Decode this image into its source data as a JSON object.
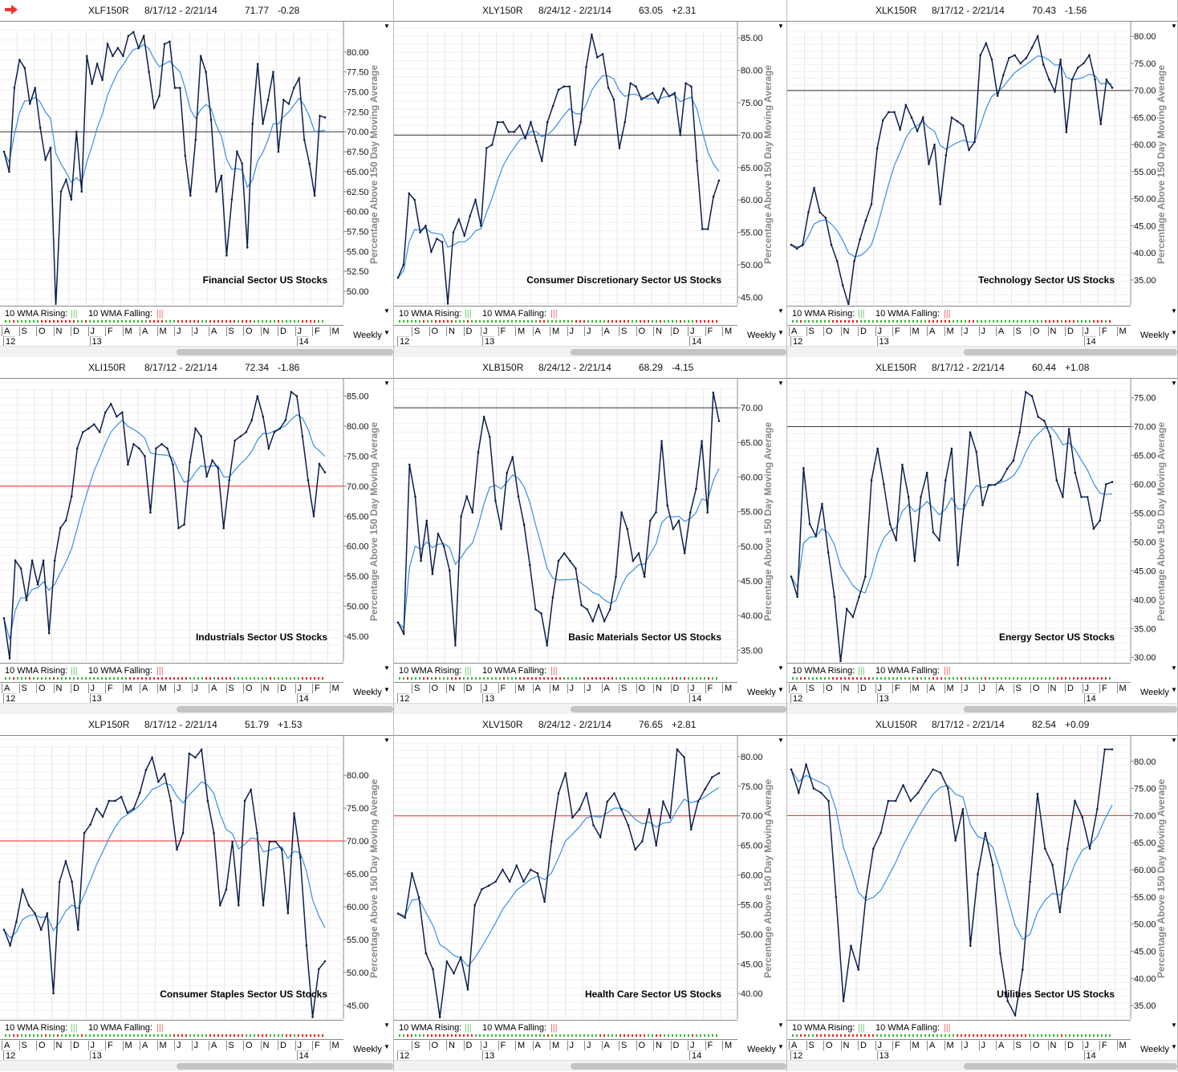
{
  "common": {
    "ylabel": "Percentage Above 150 Day Moving Average",
    "rising_label": "10 WMA Rising:",
    "falling_label": "10 WMA Falling:",
    "period": "Weekly",
    "rising_color": "#33bb33",
    "falling_color": "#ee2222",
    "price_color": "#0d1e4a",
    "wma_color": "#3a8ee6"
  },
  "chart_data": [
    {
      "type": "line",
      "ticker": "XLF150R",
      "date_range": "8/17/12 - 2/21/14",
      "last": "71.77",
      "change": "-0.28",
      "title": "Financial Sector US Stocks",
      "yticks": [
        50,
        52.5,
        55,
        57.5,
        60,
        62.5,
        65,
        67.5,
        70,
        72.5,
        75,
        77.5,
        80
      ],
      "ylim": [
        48.3,
        83.8
      ],
      "reference_line": 70,
      "ref_color": "#333333",
      "months": [
        "A",
        "S",
        "O",
        "N",
        "D",
        "J",
        "F",
        "M",
        "A",
        "M",
        "J",
        "J",
        "A",
        "S",
        "O",
        "N",
        "D",
        "J",
        "F",
        "M"
      ],
      "years": [
        "12",
        "13",
        "14"
      ],
      "values": [
        67.5,
        65,
        75.5,
        79,
        78,
        73.5,
        75.5,
        70.5,
        66.5,
        68,
        48,
        62.5,
        64,
        61.5,
        70,
        62.5,
        79.5,
        76,
        78.5,
        76.5,
        81,
        79.5,
        80.5,
        79.5,
        82,
        82.5,
        80.5,
        82,
        77.5,
        73,
        74.5,
        81,
        81.3,
        75.5,
        75.5,
        67,
        62,
        69,
        79.5,
        77.5,
        71.5,
        62.5,
        64.5,
        54.5,
        61.5,
        67.5,
        66,
        55.5,
        71,
        78.5,
        71,
        74,
        77.5,
        67.5,
        74,
        73.5,
        75.5,
        76.7,
        69,
        66,
        62,
        72,
        71.8
      ]
    },
    {
      "type": "line",
      "ticker": "XLY150R",
      "date_range": "8/24/12 - 2/21/14",
      "last": "63.05",
      "change": "+2.31",
      "title": "Consumer Discretionary Sector US Stocks",
      "yticks": [
        45,
        50,
        55,
        60,
        65,
        70,
        75,
        80,
        85
      ],
      "ylim": [
        43.8,
        87.5
      ],
      "reference_line": 70,
      "ref_color": "#333333",
      "months": [
        "S",
        "O",
        "N",
        "D",
        "J",
        "F",
        "M",
        "A",
        "M",
        "J",
        "J",
        "A",
        "S",
        "O",
        "N",
        "D",
        "J",
        "F",
        "M"
      ],
      "years": [
        "12",
        "13",
        "14"
      ],
      "values": [
        48,
        50,
        61,
        60,
        55,
        56,
        52,
        54,
        53.5,
        44,
        55,
        57,
        54.5,
        57.5,
        60,
        56,
        68,
        68.5,
        72,
        72,
        70.5,
        70.5,
        71.5,
        69.5,
        72,
        69,
        66,
        72,
        74.5,
        77,
        77.5,
        77.5,
        68.5,
        72,
        80.5,
        85.5,
        82,
        82.5,
        77.3,
        75.5,
        68,
        72,
        78,
        77.5,
        75.5,
        76,
        76.5,
        75,
        77.2,
        76,
        76.5,
        70,
        78,
        77.5,
        66,
        55.5,
        55.5,
        60.5,
        63
      ]
    },
    {
      "type": "line",
      "ticker": "XLK150R",
      "date_range": "8/17/12 - 2/21/14",
      "last": "70.43",
      "change": "-1.56",
      "title": "Technology Sector US Stocks",
      "yticks": [
        35,
        40,
        45,
        50,
        55,
        60,
        65,
        70,
        75,
        80
      ],
      "ylim": [
        30.4,
        82.7
      ],
      "reference_line": 70,
      "ref_color": "#333333",
      "months": [
        "A",
        "S",
        "O",
        "N",
        "D",
        "J",
        "F",
        "M",
        "A",
        "M",
        "J",
        "J",
        "A",
        "S",
        "O",
        "N",
        "D",
        "J",
        "F",
        "M"
      ],
      "years": [
        "12",
        "13",
        "14"
      ],
      "values": [
        41.5,
        40.8,
        41.5,
        47.5,
        52,
        47.5,
        46.5,
        41.5,
        38.5,
        34,
        30.4,
        38.5,
        42.5,
        46,
        49,
        59.3,
        64.5,
        66,
        66,
        62.8,
        67.3,
        65,
        62.5,
        65,
        56.4,
        60,
        49,
        58,
        65,
        64.3,
        63.5,
        59,
        60.5,
        76.5,
        78.7,
        75.7,
        69,
        72.8,
        76,
        76.5,
        75,
        76,
        77.9,
        80,
        74.8,
        72,
        69.8,
        75.7,
        62.3,
        72,
        74.2,
        75,
        76.5,
        72,
        63.8,
        72,
        70.5
      ]
    },
    {
      "type": "line",
      "ticker": "XLI150R",
      "date_range": "8/17/12 - 2/21/14",
      "last": "72.34",
      "change": "-1.86",
      "title": "Industrials Sector US Stocks",
      "yticks": [
        45,
        50,
        55,
        60,
        65,
        70,
        75,
        80,
        85
      ],
      "ylim": [
        40.7,
        87.9
      ],
      "reference_line": 70,
      "ref_color": "#ee2222",
      "months": [
        "A",
        "S",
        "O",
        "N",
        "D",
        "J",
        "F",
        "M",
        "A",
        "M",
        "J",
        "J",
        "A",
        "S",
        "O",
        "N",
        "D",
        "J",
        "F",
        "M"
      ],
      "years": [
        "12",
        "13",
        "14"
      ],
      "values": [
        48,
        41.3,
        57.6,
        56.3,
        51,
        57.6,
        53.6,
        57.6,
        45.5,
        57.6,
        63,
        64.3,
        68.3,
        76.3,
        79,
        79.6,
        80.3,
        79,
        82.3,
        83.7,
        81.6,
        82.3,
        73.6,
        77,
        76.3,
        75,
        65.6,
        76.3,
        77,
        76.3,
        73.6,
        63,
        63.6,
        74,
        79.6,
        78.3,
        71.6,
        74.3,
        73,
        63,
        71,
        77.6,
        78.3,
        79,
        81,
        85,
        81.6,
        76.3,
        79,
        79.6,
        81,
        85.7,
        85,
        78.3,
        71,
        65,
        73.7,
        72.3
      ]
    },
    {
      "type": "line",
      "ticker": "XLB150R",
      "date_range": "8/24/12 - 2/21/14",
      "last": "68.29",
      "change": "-4.15",
      "title": "Basic Materials Sector US Stocks",
      "yticks": [
        35,
        40,
        45,
        50,
        55,
        60,
        65,
        70
      ],
      "ylim": [
        33.3,
        74.2
      ],
      "reference_line": 70,
      "ref_color": "#333333",
      "months": [
        "S",
        "O",
        "N",
        "D",
        "J",
        "F",
        "M",
        "A",
        "M",
        "J",
        "J",
        "A",
        "S",
        "O",
        "N",
        "D",
        "J",
        "F",
        "M"
      ],
      "years": [
        "12",
        "13",
        "14"
      ],
      "values": [
        39,
        37.4,
        61.8,
        57.2,
        47.9,
        53.7,
        46,
        51.8,
        50,
        46.5,
        35.7,
        54.3,
        57.2,
        54.9,
        63.6,
        68.7,
        65.8,
        56.6,
        52.5,
        60.6,
        62.9,
        57.2,
        53.1,
        47.3,
        40.9,
        40.3,
        35.7,
        42.6,
        47.9,
        49,
        47.9,
        46.8,
        41.5,
        40.9,
        39.2,
        41.5,
        39.2,
        40.9,
        45.6,
        54.9,
        52.5,
        47.9,
        49,
        45.6,
        53.7,
        54.9,
        65.2,
        55.9,
        52.5,
        53.7,
        49,
        54.9,
        58.3,
        65.2,
        54.9,
        72.2,
        68.1
      ]
    },
    {
      "type": "line",
      "ticker": "XLE150R",
      "date_range": "8/17/12 - 2/21/14",
      "last": "60.44",
      "change": "+1.08",
      "title": "Energy Sector US Stocks",
      "yticks": [
        30,
        35,
        40,
        45,
        50,
        55,
        60,
        65,
        70,
        75
      ],
      "ylim": [
        29.2,
        78.3
      ],
      "reference_line": 70,
      "ref_color": "#333333",
      "months": [
        "A",
        "S",
        "O",
        "N",
        "D",
        "J",
        "F",
        "M",
        "A",
        "M",
        "J",
        "J",
        "A",
        "S",
        "O",
        "N",
        "D",
        "J",
        "F",
        "M"
      ],
      "years": [
        "12",
        "13",
        "14"
      ],
      "values": [
        44,
        40.5,
        62.8,
        53.1,
        51,
        56.6,
        48.2,
        40.5,
        29.3,
        38.4,
        37,
        40.5,
        44,
        60.7,
        66.2,
        60,
        53.1,
        50.3,
        63.4,
        57.8,
        46.7,
        57.8,
        62,
        51.7,
        50.3,
        60.7,
        66.2,
        46,
        56.4,
        69,
        65.6,
        56.4,
        59.9,
        59.9,
        60.7,
        62.7,
        64.1,
        69,
        76,
        75.3,
        71.7,
        71,
        68.3,
        60.7,
        57.8,
        69.6,
        62,
        57.8,
        57.8,
        52.3,
        53.7,
        60,
        60.4
      ]
    },
    {
      "type": "line",
      "ticker": "XLP150R",
      "date_range": "8/17/12 - 2/21/14",
      "last": "51.79",
      "change": "+1.53",
      "title": "Consumer Staples Sector US Stocks",
      "yticks": [
        45,
        50,
        55,
        60,
        65,
        70,
        75,
        80
      ],
      "ylim": [
        42.9,
        86
      ],
      "reference_line": 70,
      "ref_color": "#ee2222",
      "months": [
        "A",
        "S",
        "O",
        "N",
        "D",
        "J",
        "F",
        "M",
        "A",
        "M",
        "J",
        "J",
        "A",
        "S",
        "O",
        "N",
        "D",
        "J",
        "F",
        "M"
      ],
      "years": [
        "12",
        "13",
        "14"
      ],
      "values": [
        56.5,
        54.1,
        57.7,
        62.6,
        60.2,
        59,
        56.5,
        59,
        46.8,
        63.8,
        66.9,
        63.8,
        56.5,
        71.2,
        72.5,
        74.9,
        73.7,
        76.1,
        76.1,
        76.7,
        74.3,
        74.9,
        77.3,
        80.8,
        82.7,
        79,
        80.2,
        76.1,
        68.7,
        71.2,
        83.3,
        82.7,
        83.9,
        76.1,
        71.2,
        60.2,
        62.6,
        69.9,
        60.2,
        76.1,
        77.8,
        71.2,
        60.2,
        69.9,
        69.9,
        68.7,
        59,
        74.2,
        67.5,
        54.1,
        43.2,
        50.5,
        51.7
      ]
    },
    {
      "type": "line",
      "ticker": "XLV150R",
      "date_range": "8/24/12 - 2/21/14",
      "last": "76.65",
      "change": "+2.81",
      "title": "Health Care Sector US Stocks",
      "yticks": [
        40,
        45,
        50,
        55,
        60,
        65,
        70,
        75,
        80
      ],
      "ylim": [
        35.7,
        83.5
      ],
      "reference_line": 70,
      "ref_color": "#ee2222",
      "months": [
        "S",
        "O",
        "N",
        "D",
        "J",
        "F",
        "M",
        "A",
        "M",
        "J",
        "J",
        "A",
        "S",
        "O",
        "N",
        "D",
        "J",
        "F",
        "M"
      ],
      "years": [
        "12",
        "13",
        "14"
      ],
      "values": [
        53.5,
        52.8,
        60.3,
        56.2,
        46.8,
        44.1,
        36,
        45.4,
        43.4,
        46.1,
        40.7,
        54.9,
        57.6,
        58.2,
        58.9,
        60.9,
        58.9,
        61.6,
        58.9,
        60.9,
        60.3,
        55.5,
        65.7,
        73.8,
        77.2,
        69.7,
        71.1,
        73.8,
        68.4,
        66.4,
        72.4,
        73.8,
        71.1,
        68.4,
        64.3,
        65.7,
        71.1,
        65,
        72.4,
        69.7,
        81.2,
        79.9,
        67.7,
        72.4,
        74.5,
        76.5,
        77.2
      ]
    },
    {
      "type": "line",
      "ticker": "XLU150R",
      "date_range": "8/17/12 - 2/21/14",
      "last": "82.54",
      "change": "+0.09",
      "title": "Utilities Sector US Stocks",
      "yticks": [
        35,
        40,
        45,
        50,
        55,
        60,
        65,
        70,
        75,
        80
      ],
      "ylim": [
        32.5,
        84.7
      ],
      "reference_line": 70,
      "ref_color": "#ee2222",
      "months": [
        "A",
        "S",
        "O",
        "N",
        "D",
        "J",
        "F",
        "M",
        "A",
        "M",
        "J",
        "J",
        "A",
        "S",
        "O",
        "N",
        "D",
        "J",
        "F",
        "M"
      ],
      "years": [
        "12",
        "13",
        "14"
      ],
      "values": [
        78.5,
        74.2,
        79.4,
        75,
        74.2,
        72.7,
        55,
        35.8,
        46,
        41.6,
        55,
        63.9,
        66.8,
        72.7,
        72.7,
        75.6,
        72.7,
        74.2,
        76.4,
        78.5,
        77.9,
        75,
        65.4,
        71.2,
        46,
        59.2,
        66.8,
        60.9,
        44.6,
        35.8,
        33.2,
        41.6,
        57.8,
        74,
        63.9,
        60.9,
        52.2,
        63.9,
        72.7,
        69.7,
        63.9,
        71.2,
        82.2,
        82.2
      ]
    }
  ]
}
